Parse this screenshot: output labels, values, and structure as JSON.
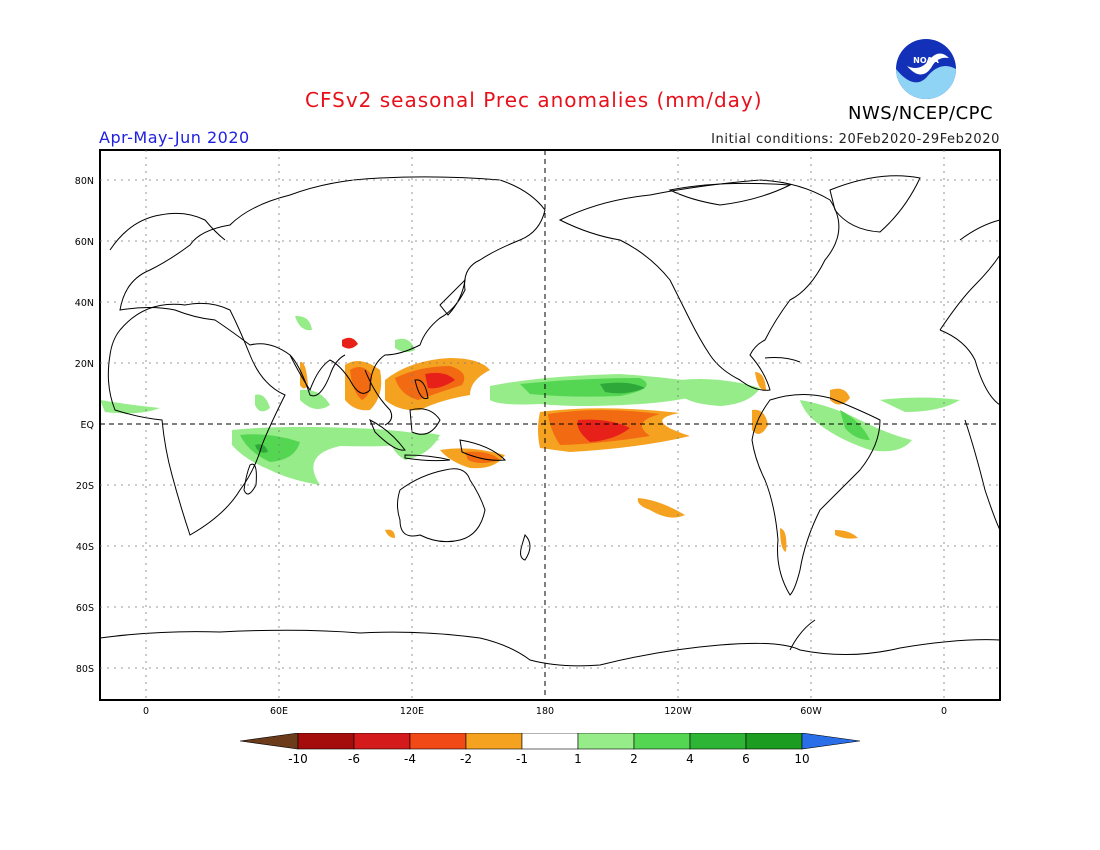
{
  "header": {
    "title": "CFSv2 seasonal Prec anomalies (mm/day)",
    "season": "Apr-May-Jun 2020",
    "initial_conditions": "Initial conditions: 20Feb2020-29Feb2020",
    "agency": "NWS/NCEP/CPC",
    "logo_text": "NOAA"
  },
  "map": {
    "lat_labels": [
      "80N",
      "60N",
      "40N",
      "20N",
      "EQ",
      "20S",
      "40S",
      "60S",
      "80S"
    ],
    "lon_labels": [
      "0",
      "60E",
      "120E",
      "180",
      "120W",
      "60W",
      "0"
    ]
  },
  "colorbar": {
    "labels": [
      "-10",
      "-6",
      "-4",
      "-2",
      "-1",
      "1",
      "2",
      "4",
      "6",
      "10"
    ],
    "colors": [
      "#6b3b1b",
      "#a50d0d",
      "#d41a1a",
      "#f24a16",
      "#f5a221",
      "#ffffff",
      "#95ec89",
      "#55d653",
      "#2fb535",
      "#1c9c20",
      "#2a6ee8"
    ]
  },
  "colors": {
    "dry_strong": "#e8201a",
    "dry": "#f26b12",
    "dry_weak": "#f5a221",
    "wet_weak": "#95ec89",
    "wet": "#55d653",
    "wet_strong": "#2fa83a"
  }
}
